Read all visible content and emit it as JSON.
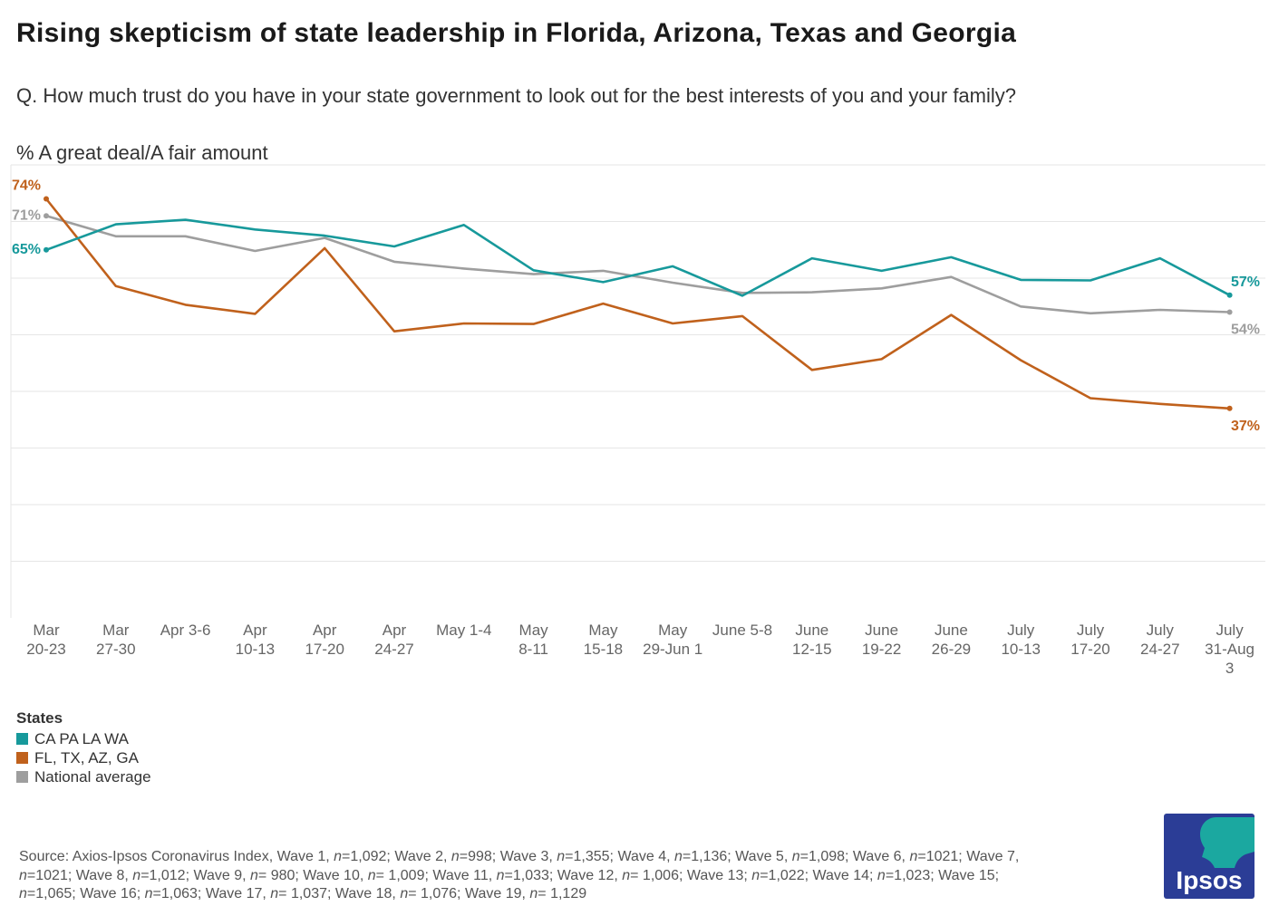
{
  "title": "Rising skepticism of state leadership in Florida, Arizona, Texas and Georgia",
  "question": "Q. How much trust do you have in your state government to look out for the best interests of you and your family?",
  "measure": "% A great deal/A fair amount",
  "colors": {
    "teal": "#17999b",
    "orange": "#c0611c",
    "gray": "#9e9e9e",
    "grid": "#e6e6e6",
    "logo_bg": "#2b3d96",
    "logo_accent": "#1ba8a0"
  },
  "legend": {
    "title": "States",
    "items": [
      {
        "label": "CA PA LA WA",
        "color": "#17999b"
      },
      {
        "label": "FL, TX, AZ, GA",
        "color": "#c0611c"
      },
      {
        "label": "National average",
        "color": "#9e9e9e"
      }
    ]
  },
  "chart_data": {
    "type": "line",
    "title": "Rising skepticism of state leadership in Florida, Arizona, Texas and Georgia",
    "xlabel": "",
    "ylabel": "% A great deal/A fair amount",
    "ylim": [
      0,
      80
    ],
    "grid": true,
    "categories": [
      [
        "Mar",
        "20-23"
      ],
      [
        "Mar",
        "27-30"
      ],
      [
        "Apr 3-6"
      ],
      [
        "Apr",
        "10-13"
      ],
      [
        "Apr",
        "17-20"
      ],
      [
        "Apr",
        "24-27"
      ],
      [
        "May 1-4"
      ],
      [
        "May",
        "8-11"
      ],
      [
        "May",
        "15-18"
      ],
      [
        "May",
        "29-Jun 1"
      ],
      [
        "June 5-8"
      ],
      [
        "June",
        "12-15"
      ],
      [
        "June",
        "19-22"
      ],
      [
        "June",
        "26-29"
      ],
      [
        "July",
        "10-13"
      ],
      [
        "July",
        "17-20"
      ],
      [
        "July",
        "24-27"
      ],
      [
        "July",
        "31-Aug",
        "3"
      ]
    ],
    "series": [
      {
        "name": "CA PA LA WA",
        "color": "#17999b",
        "values": [
          65,
          69.5,
          70.3,
          68.6,
          67.5,
          65.6,
          69.4,
          61.4,
          59.3,
          62.1,
          56.9,
          63.5,
          61.3,
          63.7,
          59.7,
          59.6,
          63.5,
          57
        ],
        "start_label": "65%",
        "end_label": "57%"
      },
      {
        "name": "FL, TX, AZ, GA",
        "color": "#c0611c",
        "values": [
          74,
          58.6,
          55.3,
          53.7,
          65.3,
          50.6,
          52,
          51.9,
          55.5,
          52,
          53.3,
          43.8,
          45.7,
          53.5,
          45.5,
          38.8,
          37.8,
          37
        ],
        "start_label": "74%",
        "end_label": "37%"
      },
      {
        "name": "National average",
        "color": "#9e9e9e",
        "values": [
          71,
          67.4,
          67.4,
          64.8,
          67.1,
          62.9,
          61.7,
          60.7,
          61.3,
          59.2,
          57.4,
          57.5,
          58.2,
          60.2,
          55,
          53.8,
          54.4,
          54
        ],
        "start_label": "71%",
        "end_label": "54%"
      }
    ]
  },
  "source": {
    "prefix": "Source: Axios-Ipsos Coronavirus Index, ",
    "waves": [
      {
        "wave": "Wave 1, ",
        "n": "=1,092; "
      },
      {
        "wave": "Wave 2, ",
        "n": "=998; "
      },
      {
        "wave": "Wave 3, ",
        "n": "=1,355; "
      },
      {
        "wave": "Wave 4, ",
        "n": "=1,136; "
      },
      {
        "wave": "Wave 5, ",
        "n": "=1,098; "
      },
      {
        "wave": "Wave 6, ",
        "n": "=1021; "
      },
      {
        "wave": "Wave 7, ",
        "n": "=1021; "
      },
      {
        "wave": "Wave 8, ",
        "n": "=1,012; "
      },
      {
        "wave": "Wave 9, ",
        "n": "= 980; "
      },
      {
        "wave": "Wave 10, ",
        "n": "= 1,009; "
      },
      {
        "wave": "Wave 11, ",
        "n": "=1,033; "
      },
      {
        "wave": "Wave 12, ",
        "n": "= 1,006; "
      },
      {
        "wave": "Wave 13; ",
        "n": "=1,022; "
      },
      {
        "wave": "Wave 14; ",
        "n": "=1,023; "
      },
      {
        "wave": "Wave 15; ",
        "n": "=1,065; "
      },
      {
        "wave": "Wave 16; ",
        "n": "=1,063; "
      },
      {
        "wave": "Wave 17, ",
        "n": "= 1,037; "
      },
      {
        "wave": "Wave 18, ",
        "n": "= 1,076; "
      },
      {
        "wave": "Wave 19, ",
        "n": "= 1,129"
      }
    ],
    "n_symbol": "n"
  },
  "logo": {
    "text": "Ipsos"
  }
}
